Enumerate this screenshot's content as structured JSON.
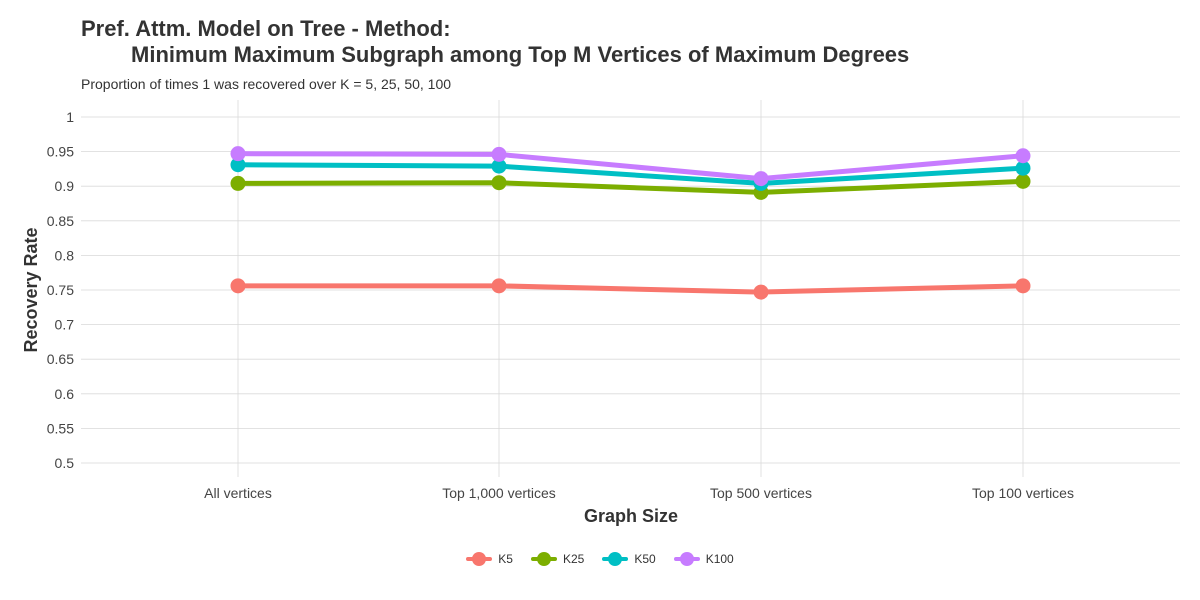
{
  "chart_data": {
    "type": "line",
    "title_line1": "Pref. Attm. Model on Tree - Method:",
    "title_line2": "Minimum Maximum Subgraph among Top M Vertices of Maximum Degrees",
    "subtitle": "Proportion of times 1 was recovered over K = 5, 25, 50, 100",
    "xlabel": "Graph Size",
    "ylabel": "Recovery Rate",
    "categories": [
      "All vertices",
      "Top 1,000 vertices",
      "Top 500 vertices",
      "Top 100 vertices"
    ],
    "ylim": [
      0.5,
      1.0
    ],
    "yticks": [
      "0.5",
      "0.55",
      "0.6",
      "0.65",
      "0.7",
      "0.75",
      "0.8",
      "0.85",
      "0.9",
      "0.95",
      "1"
    ],
    "grid": true,
    "legend_position": "bottom",
    "series": [
      {
        "name": "K5",
        "color": "#F8766D",
        "values": [
          0.756,
          0.756,
          0.747,
          0.756
        ]
      },
      {
        "name": "K25",
        "color": "#7CAE00",
        "values": [
          0.904,
          0.905,
          0.891,
          0.907
        ]
      },
      {
        "name": "K50",
        "color": "#00BFC4",
        "values": [
          0.931,
          0.929,
          0.904,
          0.926
        ]
      },
      {
        "name": "K100",
        "color": "#C77CFF",
        "values": [
          0.947,
          0.946,
          0.911,
          0.944
        ]
      }
    ]
  }
}
